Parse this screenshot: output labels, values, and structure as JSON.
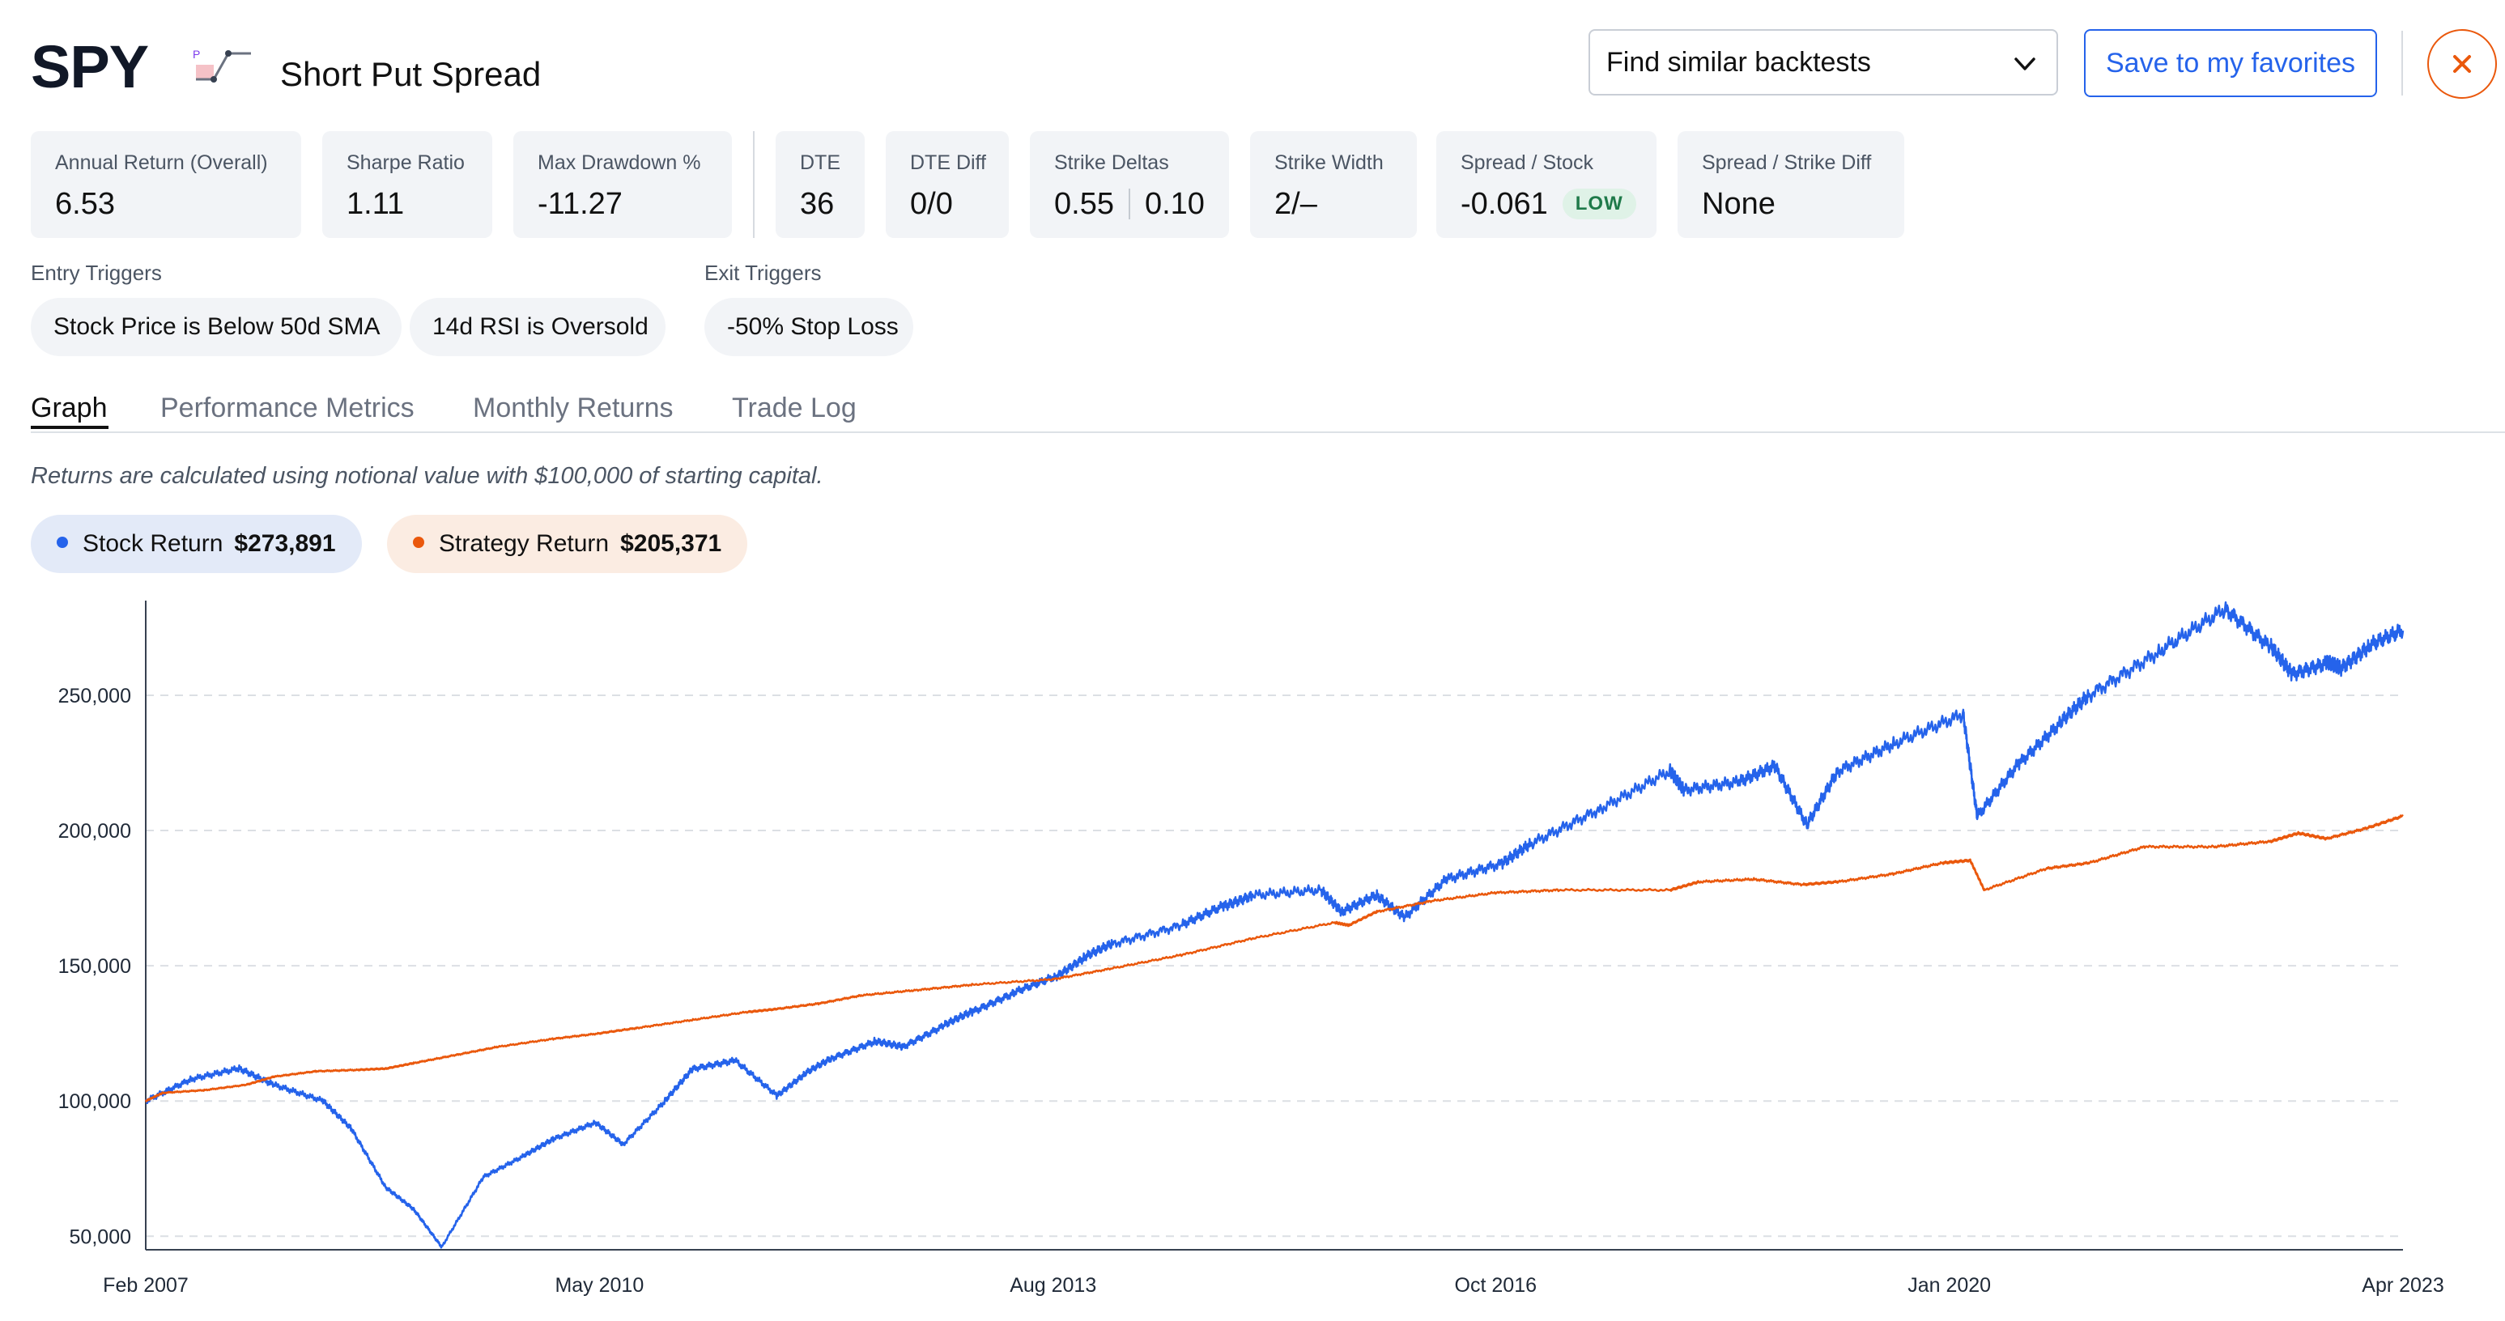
{
  "header": {
    "ticker": "SPY",
    "strategy_icon": "put-spread-icon",
    "strategy_icon_letter": "P",
    "strategy_name": "Short Put Spread",
    "similar_select": "Find similar backtests",
    "favorites_label": "Save to my favorites",
    "close_icon": "close-icon"
  },
  "metrics": {
    "annual_return": {
      "label": "Annual Return (Overall)",
      "value": "6.53"
    },
    "sharpe": {
      "label": "Sharpe Ratio",
      "value": "1.11"
    },
    "drawdown": {
      "label": "Max Drawdown %",
      "value": "-11.27"
    },
    "dte": {
      "label": "DTE",
      "value": "36"
    },
    "dte_diff": {
      "label": "DTE Diff",
      "value": "0/0"
    },
    "strike_deltas": {
      "label": "Strike Deltas",
      "value_a": "0.55",
      "value_b": "0.10"
    },
    "strike_width": {
      "label": "Strike Width",
      "value": "2/–"
    },
    "spread_stock": {
      "label": "Spread / Stock",
      "value": "-0.061",
      "badge": "LOW"
    },
    "spread_strike_diff": {
      "label": "Spread / Strike Diff",
      "value": "None"
    }
  },
  "triggers": {
    "entry_title": "Entry Triggers",
    "entry": [
      "Stock Price is Below 50d SMA",
      "14d RSI is Oversold"
    ],
    "exit_title": "Exit Triggers",
    "exit": [
      "-50% Stop Loss"
    ]
  },
  "tabs": [
    "Graph",
    "Performance Metrics",
    "Monthly Returns",
    "Trade Log"
  ],
  "active_tab": "Graph",
  "note": "Returns are calculated using notional value with $100,000 of starting capital.",
  "legend": {
    "stock": {
      "label": "Stock Return",
      "value": "$273,891"
    },
    "strategy": {
      "label": "Strategy Return",
      "value": "$205,371"
    }
  },
  "colors": {
    "accent": "#2563eb",
    "stock": "#2563eb",
    "strategy": "#ea580c",
    "low_badge": "#1f7a4a"
  },
  "chart_data": {
    "type": "line",
    "xlim": [
      2007.08,
      2023.25
    ],
    "ylim": [
      45000,
      285000
    ],
    "y_ticks": [
      50000,
      100000,
      150000,
      200000,
      250000
    ],
    "y_tick_labels": [
      "50,000",
      "100,000",
      "150,000",
      "200,000",
      "250,000"
    ],
    "x_ticks": [
      2007.08,
      2010.33,
      2013.58,
      2016.75,
      2020.0,
      2023.25
    ],
    "x_tick_labels": [
      "Feb 2007",
      "May 2010",
      "Aug 2013",
      "Oct 2016",
      "Jan 2020",
      "Apr 2023"
    ],
    "grid": "horizontal dashed",
    "series": [
      {
        "name": "Stock Return",
        "x": [
          2007.08,
          2007.4,
          2007.75,
          2008.0,
          2008.35,
          2008.55,
          2008.8,
          2009.0,
          2009.2,
          2009.5,
          2009.8,
          2010.0,
          2010.3,
          2010.5,
          2010.8,
          2011.0,
          2011.3,
          2011.6,
          2011.8,
          2012.0,
          2012.3,
          2012.5,
          2012.8,
          2013.0,
          2013.3,
          2013.6,
          2013.8,
          2014.0,
          2014.5,
          2014.8,
          2015.0,
          2015.5,
          2015.65,
          2015.9,
          2016.1,
          2016.4,
          2016.8,
          2017.0,
          2017.5,
          2018.0,
          2018.1,
          2018.5,
          2018.75,
          2018.98,
          2019.2,
          2019.6,
          2020.1,
          2020.2,
          2020.5,
          2020.8,
          2021.0,
          2021.5,
          2021.98,
          2022.3,
          2022.45,
          2022.7,
          2022.8,
          2023.0,
          2023.25
        ],
        "y": [
          100000,
          108000,
          112000,
          106000,
          100000,
          90000,
          68000,
          60000,
          46000,
          72000,
          80000,
          86000,
          92000,
          84000,
          100000,
          112000,
          115000,
          102000,
          110000,
          116000,
          122000,
          120000,
          128000,
          133000,
          140000,
          146000,
          153000,
          158000,
          165000,
          172000,
          176000,
          178000,
          170000,
          176000,
          168000,
          182000,
          188000,
          195000,
          208000,
          222000,
          215000,
          218000,
          224000,
          202000,
          222000,
          232000,
          243000,
          205000,
          225000,
          240000,
          250000,
          266000,
          282000,
          268000,
          258000,
          262000,
          260000,
          268000,
          273891
        ]
      },
      {
        "name": "Strategy Return",
        "x": [
          2007.08,
          2007.2,
          2007.5,
          2007.8,
          2008.0,
          2008.3,
          2008.6,
          2008.8,
          2009.0,
          2009.3,
          2009.6,
          2010.0,
          2010.33,
          2010.6,
          2011.0,
          2011.4,
          2011.6,
          2011.9,
          2012.2,
          2012.6,
          2013.0,
          2013.58,
          2014.0,
          2014.5,
          2015.0,
          2015.6,
          2015.7,
          2015.9,
          2016.3,
          2016.75,
          2017.2,
          2018.0,
          2018.2,
          2018.6,
          2018.95,
          2019.2,
          2019.6,
          2019.95,
          2020.15,
          2020.25,
          2020.7,
          2021.0,
          2021.4,
          2021.9,
          2022.3,
          2022.5,
          2022.7,
          2023.0,
          2023.25
        ],
        "y": [
          100000,
          103000,
          104000,
          106000,
          109000,
          111000,
          111500,
          112000,
          114000,
          117000,
          120000,
          123000,
          125000,
          127000,
          130000,
          133000,
          134000,
          136000,
          139000,
          141000,
          143000,
          145000,
          149000,
          154000,
          160000,
          166000,
          165000,
          170000,
          174000,
          177000,
          178000,
          178000,
          181000,
          182000,
          180000,
          181000,
          184000,
          188000,
          189000,
          178000,
          186000,
          188000,
          194000,
          194000,
          196000,
          199000,
          197000,
          201000,
          205371
        ]
      }
    ]
  }
}
